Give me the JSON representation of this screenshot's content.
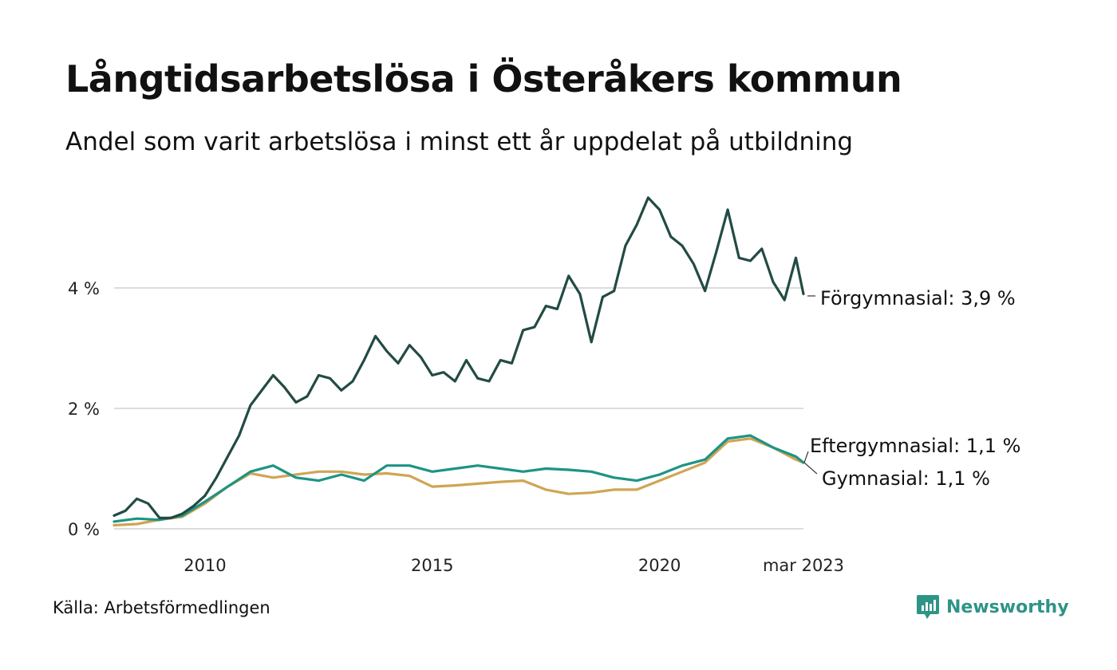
{
  "title": "Långtidsarbetslösa i Österåkers kommun",
  "subtitle": "Andel som varit arbetslösa i minst ett år uppdelat på utbildning",
  "source": "Källa: Arbetsförmedlingen",
  "brand": {
    "name": "Newsworthy",
    "icon": "newsworthy-logo-icon",
    "color": "#2e9486"
  },
  "chart_data": {
    "type": "line",
    "title": "Långtidsarbetslösa i Österåkers kommun",
    "subtitle": "Andel som varit arbetslösa i minst ett år uppdelat på utbildning",
    "xlabel": "",
    "ylabel": "",
    "x_start": "2008-01",
    "x_end": "2023-03",
    "x_ticks": [
      {
        "date": "2010-01",
        "label": "2010"
      },
      {
        "date": "2015-01",
        "label": "2015"
      },
      {
        "date": "2020-01",
        "label": "2020"
      },
      {
        "date": "2023-03",
        "label": "mar 2023"
      }
    ],
    "y_ticks": [
      {
        "value": 0,
        "label": "0 %"
      },
      {
        "value": 2,
        "label": "2 %"
      },
      {
        "value": 4,
        "label": "4 %"
      }
    ],
    "ylim": [
      0,
      5.6
    ],
    "grid": "horizontal",
    "legend": "end-of-line labels",
    "series": [
      {
        "name": "Förgymnasial",
        "end_label": "Förgymnasial: 3,9 %",
        "color": "#224b44",
        "points": [
          [
            "2008-01",
            0.22
          ],
          [
            "2008-04",
            0.3
          ],
          [
            "2008-07",
            0.5
          ],
          [
            "2008-10",
            0.42
          ],
          [
            "2009-01",
            0.18
          ],
          [
            "2009-04",
            0.18
          ],
          [
            "2009-07",
            0.25
          ],
          [
            "2009-10",
            0.38
          ],
          [
            "2010-01",
            0.55
          ],
          [
            "2010-04",
            0.85
          ],
          [
            "2010-07",
            1.2
          ],
          [
            "2010-10",
            1.55
          ],
          [
            "2011-01",
            2.05
          ],
          [
            "2011-04",
            2.3
          ],
          [
            "2011-07",
            2.55
          ],
          [
            "2011-10",
            2.35
          ],
          [
            "2012-01",
            2.1
          ],
          [
            "2012-04",
            2.2
          ],
          [
            "2012-07",
            2.55
          ],
          [
            "2012-10",
            2.5
          ],
          [
            "2013-01",
            2.3
          ],
          [
            "2013-04",
            2.45
          ],
          [
            "2013-07",
            2.8
          ],
          [
            "2013-10",
            3.2
          ],
          [
            "2014-01",
            2.95
          ],
          [
            "2014-04",
            2.75
          ],
          [
            "2014-07",
            3.05
          ],
          [
            "2014-10",
            2.85
          ],
          [
            "2015-01",
            2.55
          ],
          [
            "2015-04",
            2.6
          ],
          [
            "2015-07",
            2.45
          ],
          [
            "2015-10",
            2.8
          ],
          [
            "2016-01",
            2.5
          ],
          [
            "2016-04",
            2.45
          ],
          [
            "2016-07",
            2.8
          ],
          [
            "2016-10",
            2.75
          ],
          [
            "2017-01",
            3.3
          ],
          [
            "2017-04",
            3.35
          ],
          [
            "2017-07",
            3.7
          ],
          [
            "2017-10",
            3.65
          ],
          [
            "2018-01",
            4.2
          ],
          [
            "2018-04",
            3.9
          ],
          [
            "2018-07",
            3.1
          ],
          [
            "2018-10",
            3.85
          ],
          [
            "2019-01",
            3.95
          ],
          [
            "2019-04",
            4.7
          ],
          [
            "2019-07",
            5.05
          ],
          [
            "2019-10",
            5.5
          ],
          [
            "2020-01",
            5.3
          ],
          [
            "2020-04",
            4.85
          ],
          [
            "2020-07",
            4.7
          ],
          [
            "2020-10",
            4.4
          ],
          [
            "2021-01",
            3.95
          ],
          [
            "2021-04",
            4.6
          ],
          [
            "2021-07",
            5.3
          ],
          [
            "2021-10",
            4.5
          ],
          [
            "2022-01",
            4.45
          ],
          [
            "2022-04",
            4.65
          ],
          [
            "2022-07",
            4.1
          ],
          [
            "2022-10",
            3.8
          ],
          [
            "2023-01",
            4.5
          ],
          [
            "2023-03",
            3.9
          ]
        ]
      },
      {
        "name": "Eftergymnasial",
        "end_label": "Eftergymnasial: 1,1 %",
        "color": "#1d9484",
        "points": [
          [
            "2008-01",
            0.12
          ],
          [
            "2008-07",
            0.17
          ],
          [
            "2009-01",
            0.15
          ],
          [
            "2009-07",
            0.22
          ],
          [
            "2010-01",
            0.45
          ],
          [
            "2010-07",
            0.7
          ],
          [
            "2011-01",
            0.95
          ],
          [
            "2011-07",
            1.05
          ],
          [
            "2012-01",
            0.85
          ],
          [
            "2012-07",
            0.8
          ],
          [
            "2013-01",
            0.9
          ],
          [
            "2013-07",
            0.8
          ],
          [
            "2014-01",
            1.05
          ],
          [
            "2014-07",
            1.05
          ],
          [
            "2015-01",
            0.95
          ],
          [
            "2015-07",
            1.0
          ],
          [
            "2016-01",
            1.05
          ],
          [
            "2016-07",
            1.0
          ],
          [
            "2017-01",
            0.95
          ],
          [
            "2017-07",
            1.0
          ],
          [
            "2018-01",
            0.98
          ],
          [
            "2018-07",
            0.95
          ],
          [
            "2019-01",
            0.85
          ],
          [
            "2019-07",
            0.8
          ],
          [
            "2020-01",
            0.9
          ],
          [
            "2020-07",
            1.05
          ],
          [
            "2021-01",
            1.15
          ],
          [
            "2021-07",
            1.5
          ],
          [
            "2022-01",
            1.55
          ],
          [
            "2022-07",
            1.35
          ],
          [
            "2023-01",
            1.2
          ],
          [
            "2023-03",
            1.1
          ]
        ]
      },
      {
        "name": "Gymnasial",
        "end_label": "Gymnasial: 1,1 %",
        "color": "#cfa554",
        "points": [
          [
            "2008-01",
            0.06
          ],
          [
            "2008-07",
            0.08
          ],
          [
            "2009-01",
            0.15
          ],
          [
            "2009-07",
            0.2
          ],
          [
            "2010-01",
            0.42
          ],
          [
            "2010-07",
            0.7
          ],
          [
            "2011-01",
            0.92
          ],
          [
            "2011-07",
            0.85
          ],
          [
            "2012-01",
            0.9
          ],
          [
            "2012-07",
            0.95
          ],
          [
            "2013-01",
            0.95
          ],
          [
            "2013-07",
            0.9
          ],
          [
            "2014-01",
            0.92
          ],
          [
            "2014-07",
            0.88
          ],
          [
            "2015-01",
            0.7
          ],
          [
            "2015-07",
            0.72
          ],
          [
            "2016-01",
            0.75
          ],
          [
            "2016-07",
            0.78
          ],
          [
            "2017-01",
            0.8
          ],
          [
            "2017-07",
            0.65
          ],
          [
            "2018-01",
            0.58
          ],
          [
            "2018-07",
            0.6
          ],
          [
            "2019-01",
            0.65
          ],
          [
            "2019-07",
            0.65
          ],
          [
            "2020-01",
            0.8
          ],
          [
            "2020-07",
            0.95
          ],
          [
            "2021-01",
            1.1
          ],
          [
            "2021-07",
            1.45
          ],
          [
            "2022-01",
            1.5
          ],
          [
            "2022-07",
            1.35
          ],
          [
            "2023-01",
            1.15
          ],
          [
            "2023-03",
            1.1
          ]
        ]
      }
    ]
  }
}
